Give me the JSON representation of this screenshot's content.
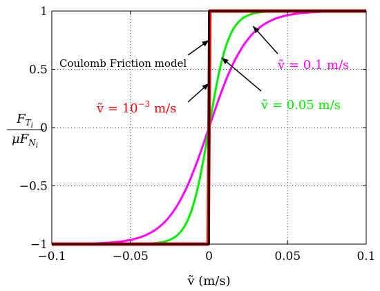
{
  "chart_data": {
    "type": "line",
    "title": "",
    "xlabel": "ṽ (m/s)",
    "ylabel": {
      "numerator": "F",
      "numerator_sub": "T",
      "numerator_subsub": "i",
      "denominator": "μF",
      "denominator_sub": "N",
      "denominator_subsub": "i"
    },
    "xlim": [
      -0.1,
      0.1
    ],
    "ylim": [
      -1,
      1
    ],
    "xticks": [
      -0.1,
      -0.05,
      0,
      0.05,
      0.1
    ],
    "xtick_labels": [
      "−0.1",
      "−0.05",
      "0",
      "0.05",
      "0.1"
    ],
    "yticks": [
      -1,
      -0.5,
      0,
      0.5,
      1
    ],
    "ytick_labels": [
      "−1",
      "−0.5",
      "0",
      "0.5",
      "1"
    ],
    "grid": true,
    "model": "tanh",
    "series": [
      {
        "label": "ṽ = 0.1 m/s",
        "velocity": 0.1,
        "color": "#ff00ff",
        "points": [
          [
            -0.1,
            -1.0
          ],
          [
            -0.05,
            -0.987
          ],
          [
            -0.04,
            -0.96
          ],
          [
            -0.03,
            -0.905
          ],
          [
            -0.02,
            -0.76
          ],
          [
            -0.01,
            -0.462
          ],
          [
            0,
            0
          ],
          [
            0.01,
            0.462
          ],
          [
            0.02,
            0.76
          ],
          [
            0.03,
            0.905
          ],
          [
            0.04,
            0.96
          ],
          [
            0.05,
            0.987
          ],
          [
            0.1,
            1.0
          ]
        ]
      },
      {
        "label": "ṽ = 0.05 m/s",
        "velocity": 0.05,
        "color": "#00ee00",
        "points": [
          [
            -0.1,
            -1.0
          ],
          [
            -0.04,
            -0.9993
          ],
          [
            -0.03,
            -0.995
          ],
          [
            -0.02,
            -0.964
          ],
          [
            -0.01,
            -0.76
          ],
          [
            -0.005,
            -0.462
          ],
          [
            0,
            0
          ],
          [
            0.005,
            0.462
          ],
          [
            0.01,
            0.76
          ],
          [
            0.02,
            0.964
          ],
          [
            0.03,
            0.995
          ],
          [
            0.04,
            0.9993
          ],
          [
            0.1,
            1.0
          ]
        ]
      },
      {
        "label": "ṽ = 10⁻³ m/s",
        "velocity": 0.001,
        "color": "#ff0000",
        "points": [
          [
            -0.1,
            -1.0
          ],
          [
            -0.0005,
            -1.0
          ],
          [
            0,
            0
          ],
          [
            0.0005,
            1.0
          ],
          [
            0.1,
            1.0
          ]
        ]
      },
      {
        "label": "Coulomb Friction model",
        "velocity": 0,
        "color": "#000000",
        "points": [
          [
            -0.1,
            -1.0
          ],
          [
            0,
            -1.0
          ],
          [
            0,
            1.0
          ],
          [
            0.1,
            1.0
          ]
        ]
      }
    ],
    "annotations": [
      {
        "text": "Coulomb Friction model",
        "color": "#000000",
        "arrow_to": [
          0.0,
          0.75
        ]
      },
      {
        "text": "ṽ = 0.1 m/s",
        "color": "#ff00ff",
        "arrow_to": [
          0.028,
          0.87
        ]
      },
      {
        "text": "ṽ = 0.05 m/s",
        "color": "#00ee00",
        "arrow_to": [
          0.008,
          0.6
        ]
      },
      {
        "text": "ṽ = 10",
        "exponent": "−3",
        "suffix": " m/s",
        "color": "#ff0000",
        "arrow_to": [
          0.0,
          0.38
        ]
      }
    ]
  }
}
